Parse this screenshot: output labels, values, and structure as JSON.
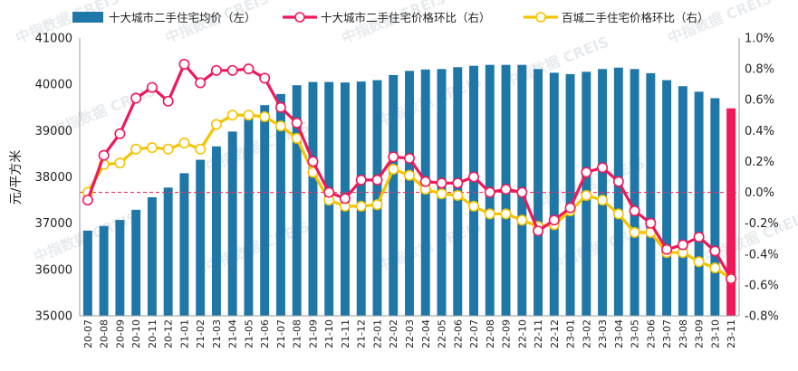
{
  "chart_data": {
    "type": "bar",
    "x": [
      "20-07",
      "20-08",
      "20-09",
      "20-10",
      "20-11",
      "20-12",
      "21-01",
      "21-02",
      "21-03",
      "21-04",
      "21-05",
      "21-06",
      "21-07",
      "21-08",
      "21-09",
      "21-10",
      "21-11",
      "21-12",
      "22-01",
      "22-02",
      "22-03",
      "22-04",
      "22-05",
      "22-06",
      "22-07",
      "22-08",
      "22-09",
      "22-10",
      "22-11",
      "22-12",
      "23-01",
      "23-02",
      "23-03",
      "23-04",
      "23-05",
      "23-06",
      "23-07",
      "23-08",
      "23-09",
      "23-10",
      "23-11"
    ],
    "ylabel": "元/平方米",
    "y_left": {
      "ticks": [
        "35000",
        "36000",
        "37000",
        "38000",
        "39000",
        "40000",
        "41000"
      ],
      "range": [
        35000,
        41000
      ]
    },
    "y_right": {
      "ticks": [
        "-0.8%",
        "-0.6%",
        "-0.4%",
        "-0.2%",
        "0.0%",
        "0.2%",
        "0.4%",
        "0.6%",
        "0.8%",
        "1.0%"
      ],
      "range": [
        -0.8,
        1.0
      ]
    },
    "grid": false,
    "legend_position": "top",
    "series": [
      {
        "name": "十大城市二手住宅均价（左）",
        "kind": "bar",
        "axis": "left",
        "color": "#1f77a8",
        "highlight_color": "#f0185a",
        "values": [
          36840,
          36940,
          37070,
          37290,
          37560,
          37770,
          38080,
          38370,
          38660,
          38980,
          39270,
          39550,
          39790,
          39980,
          40050,
          40050,
          40040,
          40060,
          40090,
          40200,
          40290,
          40320,
          40330,
          40370,
          40400,
          40420,
          40420,
          40420,
          40330,
          40250,
          40220,
          40270,
          40330,
          40360,
          40330,
          40240,
          40090,
          39960,
          39840,
          39700,
          39480
        ]
      },
      {
        "name": "十大城市二手住宅价格环比（右）",
        "kind": "line",
        "axis": "right",
        "color": "#f0185a",
        "values": [
          -0.05,
          0.24,
          0.38,
          0.61,
          0.68,
          0.59,
          0.83,
          0.71,
          0.79,
          0.79,
          0.8,
          0.74,
          0.55,
          0.45,
          0.2,
          -0.0,
          -0.04,
          0.08,
          0.08,
          0.23,
          0.22,
          0.07,
          0.06,
          0.06,
          0.1,
          0.0,
          0.02,
          -0.0,
          -0.25,
          -0.18,
          -0.1,
          0.13,
          0.16,
          0.07,
          -0.12,
          -0.2,
          -0.37,
          -0.34,
          -0.29,
          -0.38,
          -0.56
        ]
      },
      {
        "name": "百城二手住宅价格环比（右）",
        "kind": "line",
        "axis": "right",
        "color": "#f5c400",
        "values": [
          0.0,
          0.18,
          0.19,
          0.28,
          0.29,
          0.28,
          0.32,
          0.28,
          0.44,
          0.5,
          0.5,
          0.49,
          0.43,
          0.35,
          0.13,
          -0.05,
          -0.09,
          -0.09,
          -0.08,
          0.15,
          0.11,
          0.02,
          -0.01,
          -0.02,
          -0.09,
          -0.14,
          -0.14,
          -0.18,
          -0.22,
          -0.21,
          -0.12,
          -0.02,
          -0.05,
          -0.14,
          -0.26,
          -0.26,
          -0.39,
          -0.39,
          -0.45,
          -0.49,
          -0.56
        ]
      }
    ],
    "reference_line": {
      "axis": "right",
      "value": 0.0,
      "color": "#e8335f",
      "style": "dashed"
    }
  },
  "watermark": {
    "text": "中指数据 CREIS"
  }
}
